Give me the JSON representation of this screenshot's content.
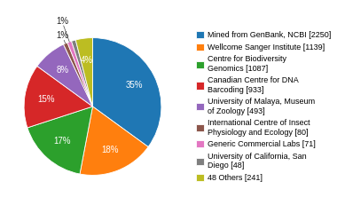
{
  "chart_data": {
    "type": "pie",
    "categories": [
      "Mined from GenBank, NCBI [2250]",
      "Wellcome Sanger Institute [1139]",
      "Centre for Biodiversity\nGenomics [1087]",
      "Canadian Centre for DNA\nBarcoding [933]",
      "University of Malaya, Museum\nof Zoology [493]",
      "International Centre of Insect\nPhysiology and Ecology [80]",
      "Generic Commercial Labs [71]",
      "University of California, San\nDiego [48]",
      "48 Others [241]"
    ],
    "values": [
      35,
      18,
      17,
      15,
      8,
      1,
      1,
      1,
      4
    ],
    "value_labels": [
      "35%",
      "18%",
      "17%",
      "15%",
      "8%",
      "1%",
      "1%",
      null,
      "4%"
    ],
    "data_labels": true,
    "legend": "right"
  }
}
